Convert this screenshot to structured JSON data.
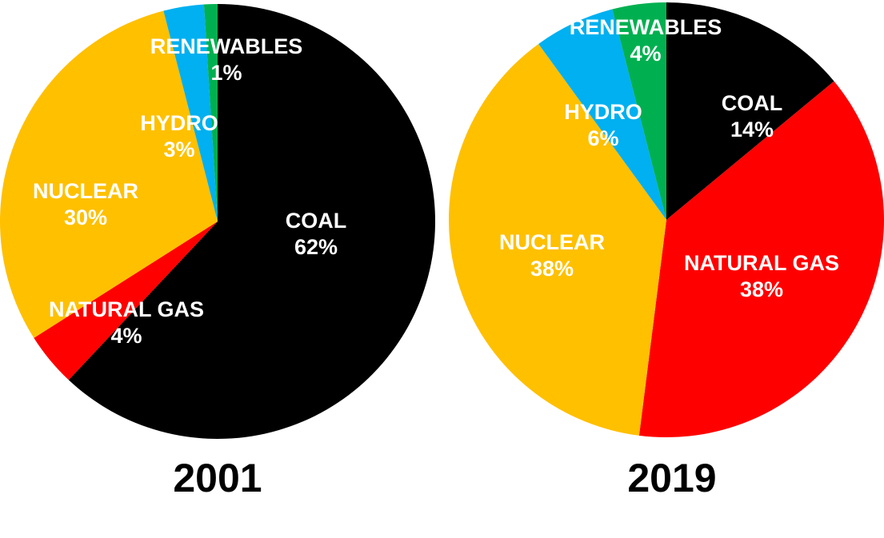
{
  "chart_data": [
    {
      "type": "pie",
      "title": "2001",
      "start": "top",
      "direction": "clockwise",
      "slices": [
        {
          "label": "COAL",
          "value": 62,
          "value_label": "62%",
          "color": "#000000"
        },
        {
          "label": "NATURAL GAS",
          "value": 4,
          "value_label": "4%",
          "color": "#ff0000"
        },
        {
          "label": "NUCLEAR",
          "value": 30,
          "value_label": "30%",
          "color": "#ffc000"
        },
        {
          "label": "HYDRO",
          "value": 3,
          "value_label": "3%",
          "color": "#00b0f0"
        },
        {
          "label": "RENEWABLES",
          "value": 1,
          "value_label": "1%",
          "color": "#00b050"
        }
      ]
    },
    {
      "type": "pie",
      "title": "2019",
      "start": "top",
      "direction": "clockwise",
      "slices": [
        {
          "label": "COAL",
          "value": 14,
          "value_label": "14%",
          "color": "#000000"
        },
        {
          "label": "NATURAL GAS",
          "value": 38,
          "value_label": "38%",
          "color": "#ff0000"
        },
        {
          "label": "NUCLEAR",
          "value": 38,
          "value_label": "38%",
          "color": "#ffc000"
        },
        {
          "label": "HYDRO",
          "value": 6,
          "value_label": "6%",
          "color": "#00b0f0"
        },
        {
          "label": "RENEWABLES",
          "value": 4,
          "value_label": "4%",
          "color": "#00b050"
        }
      ]
    }
  ]
}
